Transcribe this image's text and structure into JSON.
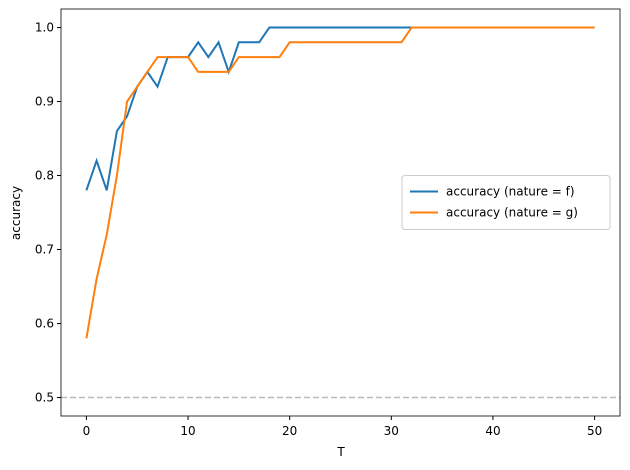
{
  "chart_data": {
    "type": "line",
    "x_label": "T",
    "y_label": "accuracy",
    "x": [
      0,
      1,
      2,
      3,
      4,
      5,
      6,
      7,
      8,
      9,
      10,
      11,
      12,
      13,
      14,
      15,
      16,
      17,
      18,
      19,
      20,
      21,
      22,
      23,
      24,
      25,
      26,
      27,
      28,
      29,
      30,
      31,
      32,
      33,
      34,
      35,
      36,
      37,
      38,
      39,
      40,
      41,
      42,
      43,
      44,
      45,
      46,
      47,
      48,
      49,
      50
    ],
    "series": [
      {
        "name": "accuracy (nature = f)",
        "color": "#1f77b4",
        "values": [
          0.78,
          0.82,
          0.78,
          0.86,
          0.88,
          0.92,
          0.94,
          0.92,
          0.96,
          0.96,
          0.96,
          0.98,
          0.96,
          0.98,
          0.94,
          0.98,
          0.98,
          0.98,
          1,
          1,
          1,
          1,
          1,
          1,
          1,
          1,
          1,
          1,
          1,
          1,
          1,
          1,
          1,
          1,
          1,
          1,
          1,
          1,
          1,
          1,
          1,
          1,
          1,
          1,
          1,
          1,
          1,
          1,
          1,
          1,
          1
        ]
      },
      {
        "name": "accuracy (nature = g)",
        "color": "#ff7f0e",
        "values": [
          0.58,
          0.66,
          0.72,
          0.8,
          0.9,
          0.92,
          0.94,
          0.96,
          0.96,
          0.96,
          0.96,
          0.94,
          0.94,
          0.94,
          0.94,
          0.96,
          0.96,
          0.96,
          0.96,
          0.96,
          0.98,
          0.98,
          0.98,
          0.98,
          0.98,
          0.98,
          0.98,
          0.98,
          0.98,
          0.98,
          0.98,
          0.98,
          1,
          1,
          1,
          1,
          1,
          1,
          1,
          1,
          1,
          1,
          1,
          1,
          1,
          1,
          1,
          1,
          1,
          1,
          1
        ]
      }
    ],
    "hline": {
      "value": 0.5,
      "color": "#bbbbbb"
    },
    "xlim": [
      -2.5,
      52.5
    ],
    "xticks": [
      0,
      10,
      20,
      30,
      40,
      50
    ],
    "ylim": [
      0.475,
      1.025
    ],
    "yticks": [
      0.5,
      0.6,
      0.7,
      0.8,
      0.9,
      {
        "value": 1,
        "label": "1.0"
      }
    ],
    "legend": "right"
  }
}
